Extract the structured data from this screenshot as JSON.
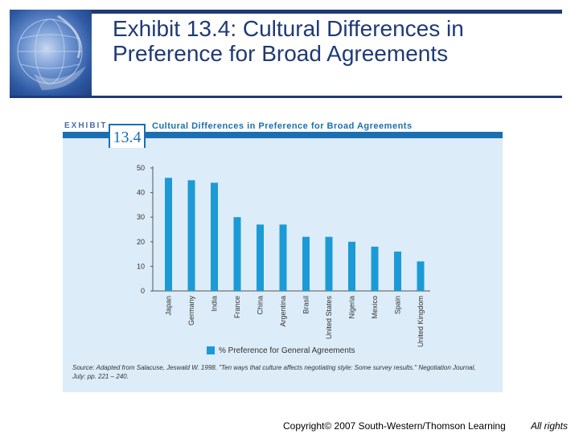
{
  "slide": {
    "title": "Exhibit 13.4: Cultural Differences in Preference for Broad Agreements"
  },
  "exhibit": {
    "label": "EXHIBIT",
    "number": "13.4",
    "caption": "Cultural Differences in Preference for Broad Agreements",
    "source": "Source: Adapted from Salacuse, Jeswald W. 1998. \"Ten ways that culture affects negotiating style: Some survey results.\" Negotiation Journal, July: pp. 221 – 240."
  },
  "footer": {
    "copyright": "Copyright© 2007 South-Western/Thomson Learning",
    "rights": "All rights"
  },
  "colors": {
    "bar": "#1b9ad6",
    "frame": "#1b6fb0",
    "panel": "#dcecf8",
    "title": "#1f3a75"
  },
  "chart_data": {
    "type": "bar",
    "categories": [
      "Japan",
      "Germany",
      "India",
      "France",
      "China",
      "Argentina",
      "Brasil",
      "United States",
      "Nigeria",
      "Mexico",
      "Spain",
      "United Kingdom"
    ],
    "series": [
      {
        "name": "% Preference for General Agreements",
        "values": [
          46,
          45,
          44,
          30,
          27,
          27,
          22,
          22,
          20,
          18,
          16,
          12
        ]
      }
    ],
    "yticks": [
      0,
      10,
      20,
      30,
      40,
      50
    ],
    "ylim": [
      0,
      50
    ],
    "legend": "bottom",
    "grid": false
  }
}
